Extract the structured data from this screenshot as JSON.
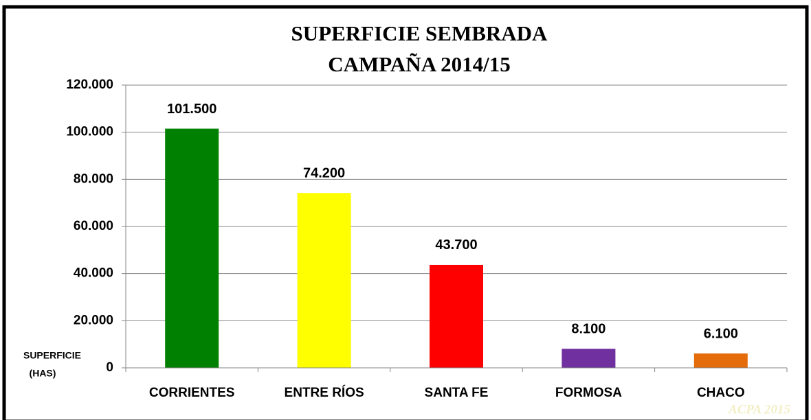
{
  "chart_data": {
    "type": "bar",
    "title": "SUPERFICIE SEMBRADA",
    "subtitle": "CAMPAÑA 2014/15",
    "ylabel": [
      "SUPERFICIE",
      "(HAS)"
    ],
    "watermark": "ACPA 2015",
    "categories": [
      "CORRIENTES",
      "ENTRE RÍOS",
      "SANTA FE",
      "FORMOSA",
      "CHACO"
    ],
    "values": [
      101500,
      74200,
      43700,
      8100,
      6100
    ],
    "value_labels": [
      "101.500",
      "74.200",
      "43.700",
      "8.100",
      "6.100"
    ],
    "colors": [
      "#008000",
      "#ffff00",
      "#ff0000",
      "#7030a0",
      "#e46c0a"
    ],
    "ylim": [
      0,
      120000
    ],
    "yticks": [
      0,
      {
        "value": 20000,
        "label": "20.000"
      },
      {
        "value": 40000,
        "label": "40.000"
      },
      {
        "value": 60000,
        "label": "60.000"
      },
      {
        "value": 80000,
        "label": "80.000"
      },
      {
        "value": 100000,
        "label": "100.000"
      },
      {
        "value": 120000,
        "label": "120.000"
      }
    ],
    "grid": true
  }
}
